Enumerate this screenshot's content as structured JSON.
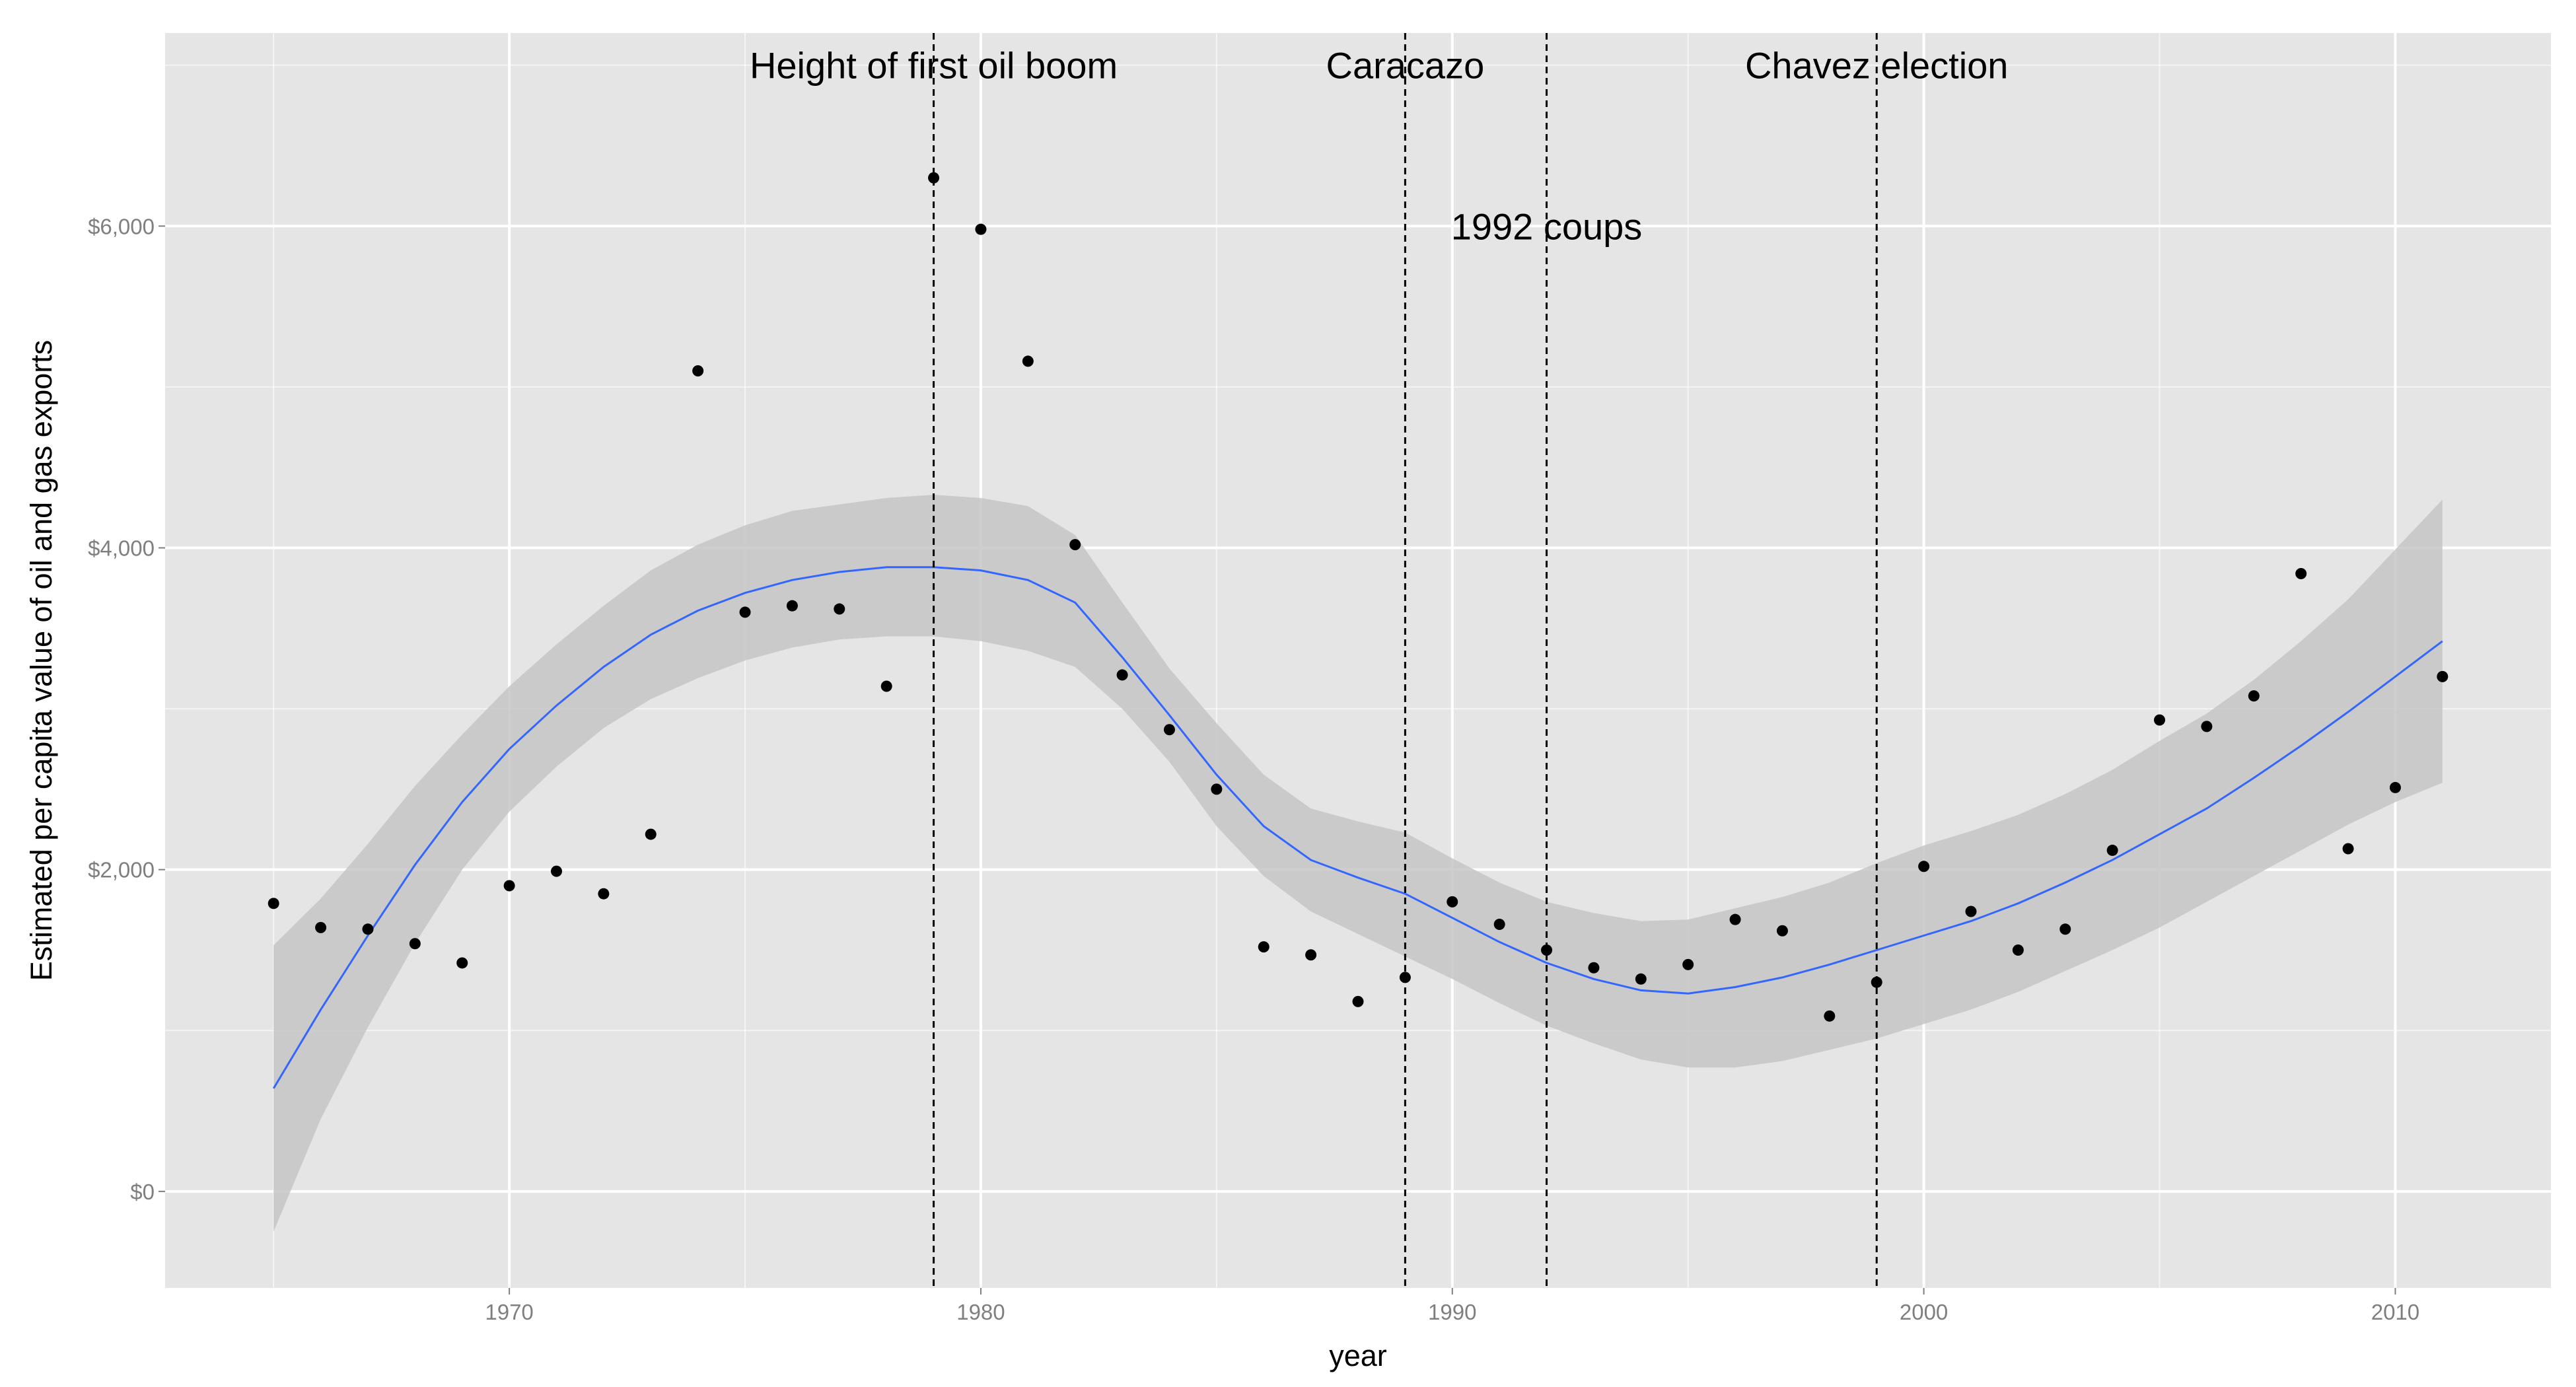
{
  "chart_data": {
    "type": "scatter",
    "title": "",
    "xlabel": "year",
    "ylabel": "Estimated per capita value of oil and gas exports",
    "xlim": [
      1962.7,
      2013.3
    ],
    "ylim": [
      -600,
      7200
    ],
    "x_ticks": [
      1970,
      1980,
      1990,
      2000,
      2010
    ],
    "y_ticks": [
      0,
      2000,
      4000,
      6000
    ],
    "y_tick_labels": [
      "$0",
      "$2,000",
      "$4,000",
      "$6,000"
    ],
    "grid": true,
    "points": {
      "x": [
        1965,
        1966,
        1967,
        1968,
        1969,
        1970,
        1971,
        1972,
        1973,
        1974,
        1975,
        1976,
        1977,
        1978,
        1979,
        1980,
        1981,
        1982,
        1983,
        1984,
        1985,
        1986,
        1987,
        1988,
        1989,
        1990,
        1991,
        1992,
        1993,
        1994,
        1995,
        1996,
        1997,
        1998,
        1999,
        2000,
        2001,
        2002,
        2003,
        2004,
        2005,
        2006,
        2007,
        2008,
        2009,
        2010,
        2011
      ],
      "y": [
        1790,
        1640,
        1630,
        1540,
        1420,
        1900,
        1990,
        1850,
        2220,
        5100,
        3600,
        3640,
        3620,
        3140,
        6300,
        5980,
        5160,
        4020,
        3210,
        2870,
        2500,
        1520,
        1470,
        1180,
        1330,
        1800,
        1660,
        1500,
        1390,
        1320,
        1410,
        1690,
        1620,
        1090,
        1300,
        2020,
        1740,
        1500,
        1630,
        2120,
        2930,
        2890,
        3080,
        3840,
        2130,
        2510,
        3200
      ],
      "color": "#000000"
    },
    "smooth": {
      "x": [
        1965,
        1966,
        1967,
        1968,
        1969,
        1970,
        1971,
        1972,
        1973,
        1974,
        1975,
        1976,
        1977,
        1978,
        1979,
        1980,
        1981,
        1982,
        1983,
        1984,
        1985,
        1986,
        1987,
        1988,
        1989,
        1990,
        1991,
        1992,
        1993,
        1994,
        1995,
        1996,
        1997,
        1998,
        1999,
        2000,
        2001,
        2002,
        2003,
        2004,
        2005,
        2006,
        2007,
        2008,
        2009,
        2010,
        2011
      ],
      "y": [
        640,
        1130,
        1590,
        2030,
        2420,
        2750,
        3020,
        3260,
        3460,
        3610,
        3720,
        3800,
        3850,
        3880,
        3880,
        3860,
        3800,
        3660,
        3320,
        2960,
        2590,
        2270,
        2060,
        1950,
        1850,
        1700,
        1550,
        1420,
        1320,
        1250,
        1230,
        1270,
        1330,
        1410,
        1500,
        1590,
        1680,
        1790,
        1920,
        2060,
        2220,
        2380,
        2570,
        2770,
        2980,
        3200,
        3420
      ],
      "lower": [
        -250,
        450,
        1020,
        1540,
        2000,
        2360,
        2640,
        2880,
        3060,
        3190,
        3300,
        3380,
        3430,
        3450,
        3450,
        3420,
        3360,
        3260,
        3000,
        2670,
        2270,
        1960,
        1740,
        1600,
        1460,
        1320,
        1170,
        1030,
        920,
        820,
        770,
        770,
        810,
        880,
        950,
        1040,
        1130,
        1240,
        1370,
        1500,
        1640,
        1800,
        1960,
        2120,
        2280,
        2420,
        2540
      ],
      "upper": [
        1530,
        1820,
        2160,
        2520,
        2840,
        3140,
        3400,
        3640,
        3860,
        4020,
        4140,
        4230,
        4270,
        4310,
        4330,
        4310,
        4260,
        4080,
        3660,
        3250,
        2910,
        2590,
        2380,
        2300,
        2230,
        2070,
        1920,
        1800,
        1730,
        1680,
        1690,
        1760,
        1830,
        1920,
        2040,
        2150,
        2240,
        2340,
        2470,
        2620,
        2800,
        2970,
        3180,
        3420,
        3680,
        3990,
        4300
      ],
      "line_color": "#3366ff",
      "band_color": "#c6c6c6"
    },
    "vlines": [
      1979,
      1989,
      1992,
      1999
    ],
    "annotations": [
      {
        "text": "Height of first oil boom",
        "x": 1979,
        "y": 7000
      },
      {
        "text": "Caracazo",
        "x": 1989,
        "y": 7000
      },
      {
        "text": "1992 coups",
        "x": 1992,
        "y": 6000
      },
      {
        "text": "Chavez election",
        "x": 1999,
        "y": 7000
      }
    ],
    "panel_background": "#e5e5e5",
    "grid_color": "#ffffff"
  }
}
